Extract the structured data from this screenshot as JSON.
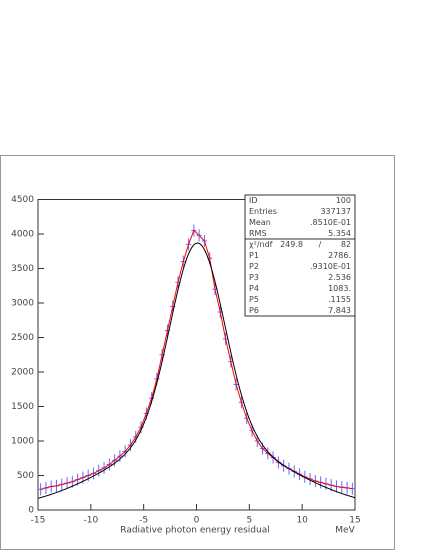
{
  "chart_data": {
    "type": "histogram",
    "xlabel": "Radiative photon energy residual",
    "xunit": "MeV",
    "bins": [
      -15,
      -14.5,
      -14,
      -13.5,
      -13,
      -12.5,
      -12,
      -11.5,
      -11,
      -10.5,
      -10,
      -9.5,
      -9,
      -8.5,
      -8,
      -7.5,
      -7,
      -6.5,
      -6,
      -5.5,
      -5,
      -4.5,
      -4,
      -3.5,
      -3,
      -2.5,
      -2,
      -1.5,
      -1,
      -0.5,
      0,
      0.5,
      1,
      1.5,
      2,
      2.5,
      3,
      3.5,
      4,
      4.5,
      5,
      5.5,
      6,
      6.5,
      7,
      7.5,
      8,
      8.5,
      9,
      9.5,
      10,
      10.5,
      11,
      11.5,
      12,
      12.5,
      13,
      13.5,
      14,
      14.5,
      15
    ],
    "values": [
      300,
      320,
      340,
      350,
      370,
      390,
      410,
      440,
      470,
      500,
      530,
      570,
      610,
      660,
      720,
      780,
      850,
      940,
      1060,
      1200,
      1400,
      1620,
      1900,
      2250,
      2600,
      2950,
      3300,
      3600,
      3850,
      4050,
      3980,
      3900,
      3650,
      3200,
      2870,
      2480,
      2150,
      1820,
      1560,
      1330,
      1150,
      1000,
      890,
      820,
      760,
      690,
      640,
      600,
      560,
      520,
      480,
      450,
      420,
      400,
      380,
      360,
      340,
      330,
      320,
      310
    ],
    "color": "#6666ff",
    "line_color": "#ff0000",
    "fit_color": "#000000",
    "xlim": [
      -15,
      15
    ],
    "xticks": [
      -15,
      -10,
      -5,
      0,
      5,
      10,
      15
    ],
    "ylim": [
      0,
      4500
    ],
    "yticks": [
      0,
      500,
      1000,
      1500,
      2000,
      2500,
      3000,
      3500,
      4000,
      4500
    ],
    "stats": [
      {
        "label": "ID",
        "value": "100"
      },
      {
        "label": "Entries",
        "value": "337137"
      },
      {
        "label": "Mean",
        "value": ".8510E-01"
      },
      {
        "label": "RMS",
        "value": "5.354"
      }
    ],
    "fit": {
      "chi_label": "χ²/ndf",
      "chi2": "249.8",
      "sep": "/",
      "ndf": "82",
      "params": [
        {
          "label": "P1",
          "value": "2786."
        },
        {
          "label": "P2",
          "value": ".9310E-01"
        },
        {
          "label": "P3",
          "value": "2.536"
        },
        {
          "label": "P4",
          "value": "1083."
        },
        {
          "label": "P5",
          "value": ".1155"
        },
        {
          "label": "P6",
          "value": "7.843"
        }
      ]
    }
  }
}
